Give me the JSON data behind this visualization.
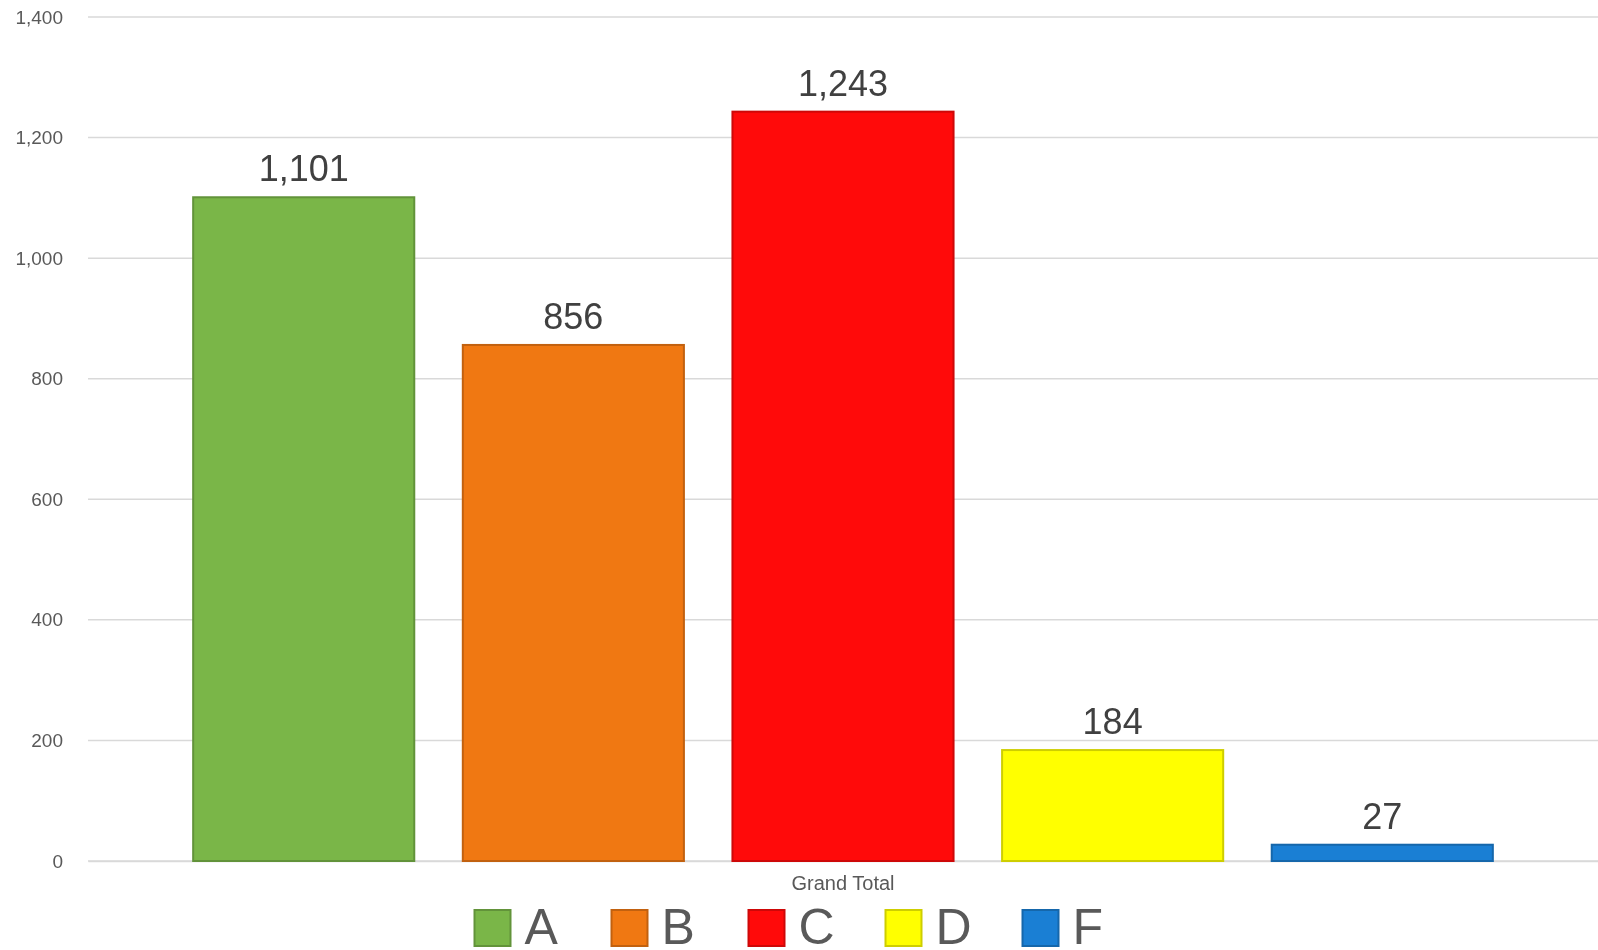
{
  "chart_data": {
    "type": "bar",
    "categories": [
      "Grand Total"
    ],
    "series": [
      {
        "name": "A",
        "color": "#7ab648",
        "values": [
          1101
        ],
        "value_labels": [
          "1,101"
        ]
      },
      {
        "name": "B",
        "color": "#f07812",
        "values": [
          856
        ],
        "value_labels": [
          "856"
        ]
      },
      {
        "name": "C",
        "color": "#ff0a0a",
        "values": [
          1243
        ],
        "value_labels": [
          "1,243"
        ]
      },
      {
        "name": "D",
        "color": "#ffff00",
        "values": [
          184
        ],
        "value_labels": [
          "184"
        ]
      },
      {
        "name": "F",
        "color": "#1a7fd4",
        "values": [
          27
        ],
        "value_labels": [
          "27"
        ]
      }
    ],
    "ylim": [
      0,
      1400
    ],
    "yticks": [
      0,
      {
        "value": 200,
        "label": "200"
      },
      {
        "value": 400,
        "label": "400"
      },
      {
        "value": 600,
        "label": "600"
      },
      {
        "value": 800,
        "label": "800"
      },
      {
        "value": 1000,
        "label": "1,000"
      },
      {
        "value": 1200,
        "label": "1,200"
      },
      {
        "value": 1400,
        "label": "1,400"
      }
    ],
    "grid": "y",
    "legend": "bottom"
  }
}
